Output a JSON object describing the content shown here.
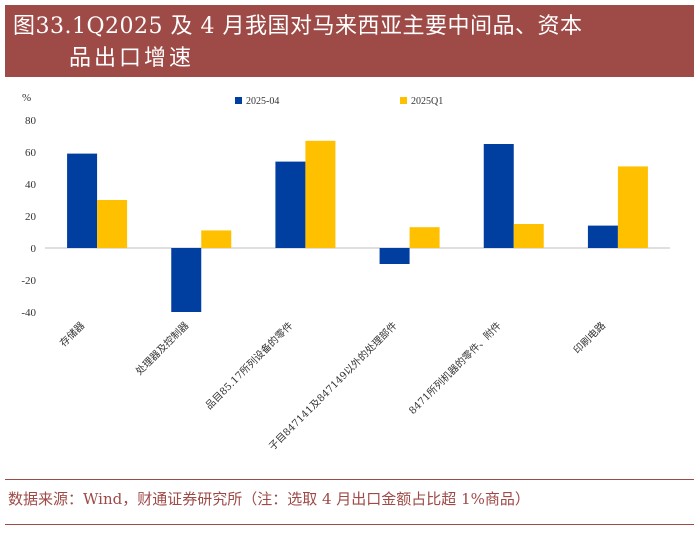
{
  "title": {
    "line1": "图33.1Q2025 及 4 月我国对马来西亚主要中间品、资本",
    "line2": "品出口增速"
  },
  "source": "数据来源：Wind，财通证券研究所（注：选取 4 月出口金额占比超 1%商品）",
  "colors": {
    "title_bg": "#9e4a47",
    "series_2025_04": "#003f9f",
    "series_2025q1": "#ffc000",
    "axis": "#bfbfbf"
  },
  "chart_data": {
    "type": "bar",
    "title": "1Q2025 及 4 月我国对马来西亚主要中间品、资本品出口增速",
    "ylabel": "%",
    "xlabel": "",
    "ylim": [
      -40,
      80
    ],
    "yticks": [
      -40,
      -20,
      0,
      20,
      40,
      60,
      80
    ],
    "legend_position": "top-center",
    "grid": false,
    "categories": [
      "存储器",
      "处理器及控制器",
      "品目85.17所列设备的零件",
      "子目847141及847149以外的处理部件",
      "8471所列机器的零件、附件",
      "印刷电路"
    ],
    "series": [
      {
        "name": "2025-04",
        "values": [
          59,
          -40,
          54,
          -10,
          65,
          14
        ]
      },
      {
        "name": "2025Q1",
        "values": [
          30,
          11,
          67,
          13,
          15,
          51
        ]
      }
    ]
  }
}
